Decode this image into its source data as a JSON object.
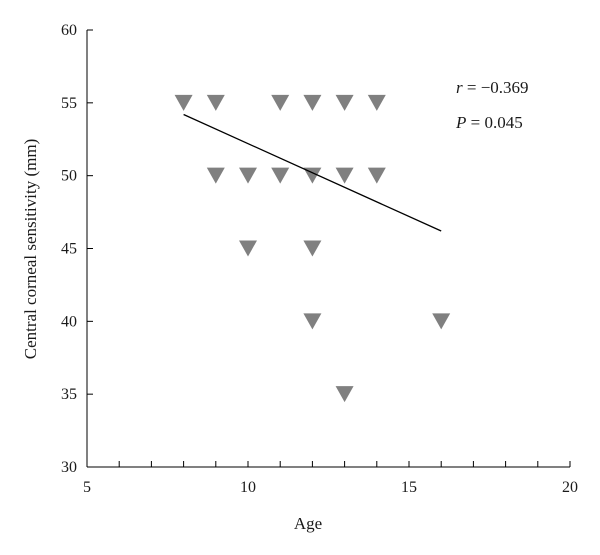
{
  "chart_data": {
    "type": "scatter",
    "xlabel": "Age",
    "ylabel": "Central corneal sensitivity (mm)",
    "xlim": [
      5,
      20
    ],
    "ylim": [
      30,
      60
    ],
    "x_ticks": [
      "5",
      "10",
      "15",
      "20"
    ],
    "y_ticks": [
      "30",
      "35",
      "40",
      "45",
      "50",
      "55",
      "60"
    ],
    "x_minor_step": 1,
    "marker": "triangle-down",
    "marker_color": "#808080",
    "points": [
      {
        "x": 8,
        "y": 55
      },
      {
        "x": 9,
        "y": 55
      },
      {
        "x": 11,
        "y": 55
      },
      {
        "x": 12,
        "y": 55
      },
      {
        "x": 13,
        "y": 55
      },
      {
        "x": 14,
        "y": 55
      },
      {
        "x": 9,
        "y": 50
      },
      {
        "x": 10,
        "y": 50
      },
      {
        "x": 11,
        "y": 50
      },
      {
        "x": 12,
        "y": 50
      },
      {
        "x": 13,
        "y": 50
      },
      {
        "x": 14,
        "y": 50
      },
      {
        "x": 10,
        "y": 45
      },
      {
        "x": 12,
        "y": 45
      },
      {
        "x": 12,
        "y": 40
      },
      {
        "x": 16,
        "y": 40
      },
      {
        "x": 13,
        "y": 35
      }
    ],
    "regression_line": {
      "x": [
        8,
        16
      ],
      "y": [
        54.2,
        46.2
      ]
    },
    "annotations": {
      "r_symbol": "r",
      "r_value": " = −0.369",
      "p_symbol": "P",
      "p_value": " = 0.045"
    }
  }
}
